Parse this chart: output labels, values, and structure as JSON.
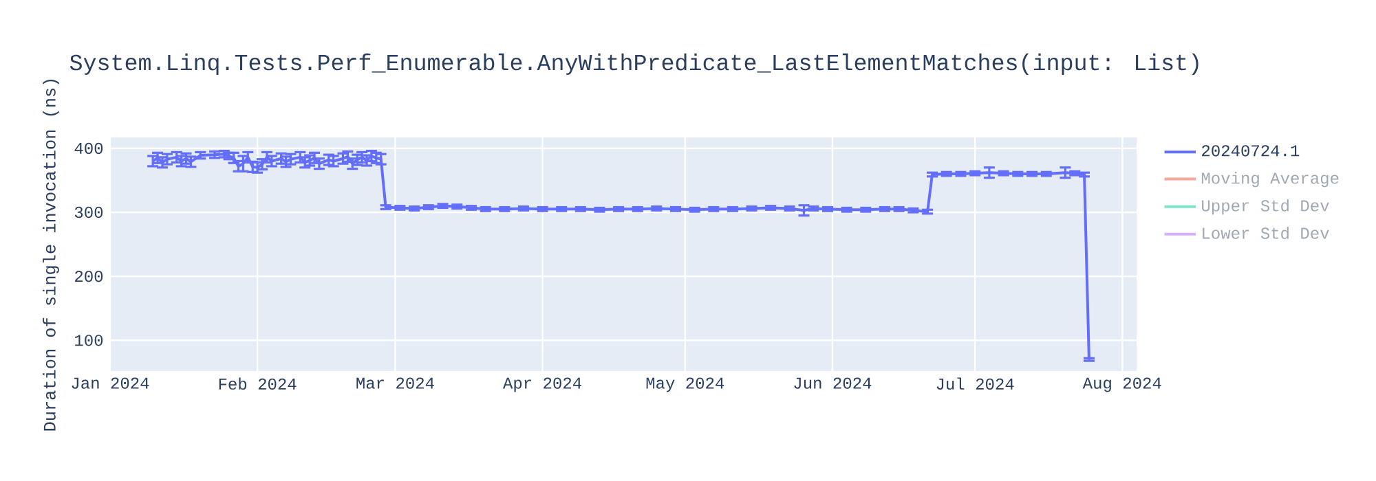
{
  "chart_data": {
    "type": "line",
    "title": "System.Linq.Tests.Perf_Enumerable.AnyWithPredicate_LastElementMatches(input: List)",
    "ylabel": "Duration of single invocation (ns)",
    "x": [
      "2024-01-10",
      "2024-01-11",
      "2024-01-12",
      "2024-01-13",
      "2024-01-15",
      "2024-01-16",
      "2024-01-17",
      "2024-01-18",
      "2024-01-20",
      "2024-01-23",
      "2024-01-25",
      "2024-01-26",
      "2024-01-27",
      "2024-01-28",
      "2024-01-29",
      "2024-01-30",
      "2024-01-31",
      "2024-02-01",
      "2024-02-02",
      "2024-02-03",
      "2024-02-04",
      "2024-02-06",
      "2024-02-07",
      "2024-02-08",
      "2024-02-10",
      "2024-02-11",
      "2024-02-12",
      "2024-02-13",
      "2024-02-14",
      "2024-02-16",
      "2024-02-17",
      "2024-02-19",
      "2024-02-20",
      "2024-02-21",
      "2024-02-22",
      "2024-02-23",
      "2024-02-24",
      "2024-02-25",
      "2024-02-26",
      "2024-02-27",
      "2024-02-28",
      "2024-03-02",
      "2024-03-05",
      "2024-03-08",
      "2024-03-11",
      "2024-03-14",
      "2024-03-17",
      "2024-03-20",
      "2024-03-24",
      "2024-03-28",
      "2024-04-01",
      "2024-04-05",
      "2024-04-09",
      "2024-04-13",
      "2024-04-17",
      "2024-04-21",
      "2024-04-25",
      "2024-04-29",
      "2024-05-03",
      "2024-05-07",
      "2024-05-11",
      "2024-05-15",
      "2024-05-19",
      "2024-05-23",
      "2024-05-26",
      "2024-05-28",
      "2024-05-31",
      "2024-06-04",
      "2024-06-08",
      "2024-06-12",
      "2024-06-15",
      "2024-06-18",
      "2024-06-21",
      "2024-06-22",
      "2024-06-25",
      "2024-06-28",
      "2024-07-01",
      "2024-07-04",
      "2024-07-07",
      "2024-07-10",
      "2024-07-13",
      "2024-07-16",
      "2024-07-20",
      "2024-07-22",
      "2024-07-24",
      "2024-07-25"
    ],
    "series": [
      {
        "name": "20240724.1",
        "color": "#636efa",
        "values": [
          380,
          385,
          378,
          383,
          386,
          380,
          384,
          379,
          389,
          390,
          391,
          388,
          385,
          372,
          376,
          386,
          371,
          370,
          375,
          386,
          380,
          384,
          379,
          383,
          386,
          378,
          381,
          385,
          376,
          382,
          380,
          384,
          387,
          376,
          382,
          386,
          381,
          388,
          385,
          383,
          308,
          307,
          306,
          308,
          310,
          309,
          307,
          305,
          305,
          306,
          305,
          305,
          305,
          304,
          305,
          305,
          306,
          305,
          304,
          305,
          305,
          306,
          307,
          306,
          303,
          306,
          305,
          304,
          304,
          305,
          305,
          303,
          301,
          359,
          360,
          360,
          361,
          362,
          361,
          360,
          360,
          360,
          362,
          361,
          359,
          70
        ],
        "errors": [
          8,
          8,
          8,
          8,
          8,
          8,
          8,
          8,
          5,
          5,
          5,
          5,
          8,
          8,
          12,
          8,
          8,
          8,
          8,
          8,
          8,
          8,
          8,
          8,
          8,
          8,
          8,
          8,
          8,
          8,
          8,
          8,
          8,
          8,
          8,
          8,
          8,
          8,
          8,
          8,
          3,
          3,
          3,
          3,
          3,
          3,
          3,
          3,
          3,
          3,
          3,
          3,
          3,
          3,
          3,
          3,
          3,
          3,
          3,
          3,
          3,
          3,
          3,
          3,
          8,
          3,
          3,
          3,
          3,
          3,
          3,
          3,
          3,
          3,
          3,
          3,
          3,
          8,
          3,
          3,
          3,
          3,
          8,
          3,
          3,
          2
        ]
      },
      {
        "name": "Moving Average",
        "color": "#f5a899",
        "values": [
          null,
          null,
          null,
          null,
          null,
          null,
          null,
          null,
          null,
          null,
          null,
          null,
          null,
          null,
          null,
          null,
          null,
          null,
          null,
          null,
          null,
          null,
          null,
          null,
          null,
          null,
          null,
          null,
          null,
          null,
          null,
          null,
          null,
          null,
          null,
          null,
          null,
          null,
          null,
          null,
          null,
          null,
          null,
          null,
          null,
          null,
          null,
          null,
          null,
          null,
          null,
          null,
          null,
          null,
          null,
          null,
          null,
          null,
          null,
          null,
          null,
          null,
          null,
          null,
          null,
          null,
          null,
          null,
          null,
          null,
          null,
          null,
          null,
          null,
          null,
          null,
          null,
          null,
          null,
          null,
          null,
          null,
          null,
          null,
          null,
          null
        ]
      },
      {
        "name": "Upper Std Dev",
        "color": "#80e5cb",
        "values": [
          null,
          null,
          null,
          null,
          null,
          null,
          null,
          null,
          null,
          null,
          null,
          null,
          null,
          null,
          null,
          null,
          null,
          null,
          null,
          null,
          null,
          null,
          null,
          null,
          null,
          null,
          null,
          null,
          null,
          null,
          null,
          null,
          null,
          null,
          null,
          null,
          null,
          null,
          null,
          null,
          null,
          null,
          null,
          null,
          null,
          null,
          null,
          null,
          null,
          null,
          null,
          null,
          null,
          null,
          null,
          null,
          null,
          null,
          null,
          null,
          null,
          null,
          null,
          null,
          null,
          null,
          null,
          null,
          null,
          null,
          null,
          null,
          null,
          null,
          null,
          null,
          null,
          null,
          null,
          null,
          null,
          null,
          null,
          null,
          null,
          null
        ]
      },
      {
        "name": "Lower Std Dev",
        "color": "#d5b1fc",
        "values": [
          null,
          null,
          null,
          null,
          null,
          null,
          null,
          null,
          null,
          null,
          null,
          null,
          null,
          null,
          null,
          null,
          null,
          null,
          null,
          null,
          null,
          null,
          null,
          null,
          null,
          null,
          null,
          null,
          null,
          null,
          null,
          null,
          null,
          null,
          null,
          null,
          null,
          null,
          null,
          null,
          null,
          null,
          null,
          null,
          null,
          null,
          null,
          null,
          null,
          null,
          null,
          null,
          null,
          null,
          null,
          null,
          null,
          null,
          null,
          null,
          null,
          null,
          null,
          null,
          null,
          null,
          null,
          null,
          null,
          null,
          null,
          null,
          null,
          null,
          null,
          null,
          null,
          null,
          null,
          null,
          null,
          null,
          null,
          null,
          null,
          null
        ]
      }
    ],
    "xlim": [
      "2024-01-01",
      "2024-08-04"
    ],
    "xticks": [
      {
        "value": "2024-01-01",
        "label": "Jan 2024"
      },
      {
        "value": "2024-02-01",
        "label": "Feb 2024"
      },
      {
        "value": "2024-03-01",
        "label": "Mar 2024"
      },
      {
        "value": "2024-04-01",
        "label": "Apr 2024"
      },
      {
        "value": "2024-05-01",
        "label": "May 2024"
      },
      {
        "value": "2024-06-01",
        "label": "Jun 2024"
      },
      {
        "value": "2024-07-01",
        "label": "Jul 2024"
      },
      {
        "value": "2024-08-01",
        "label": "Aug 2024"
      }
    ],
    "ylim": [
      52,
      417
    ],
    "yticks": [
      100,
      200,
      300,
      400
    ],
    "grid": true,
    "legend": "top right",
    "marker": "none",
    "line_style": "solid"
  }
}
